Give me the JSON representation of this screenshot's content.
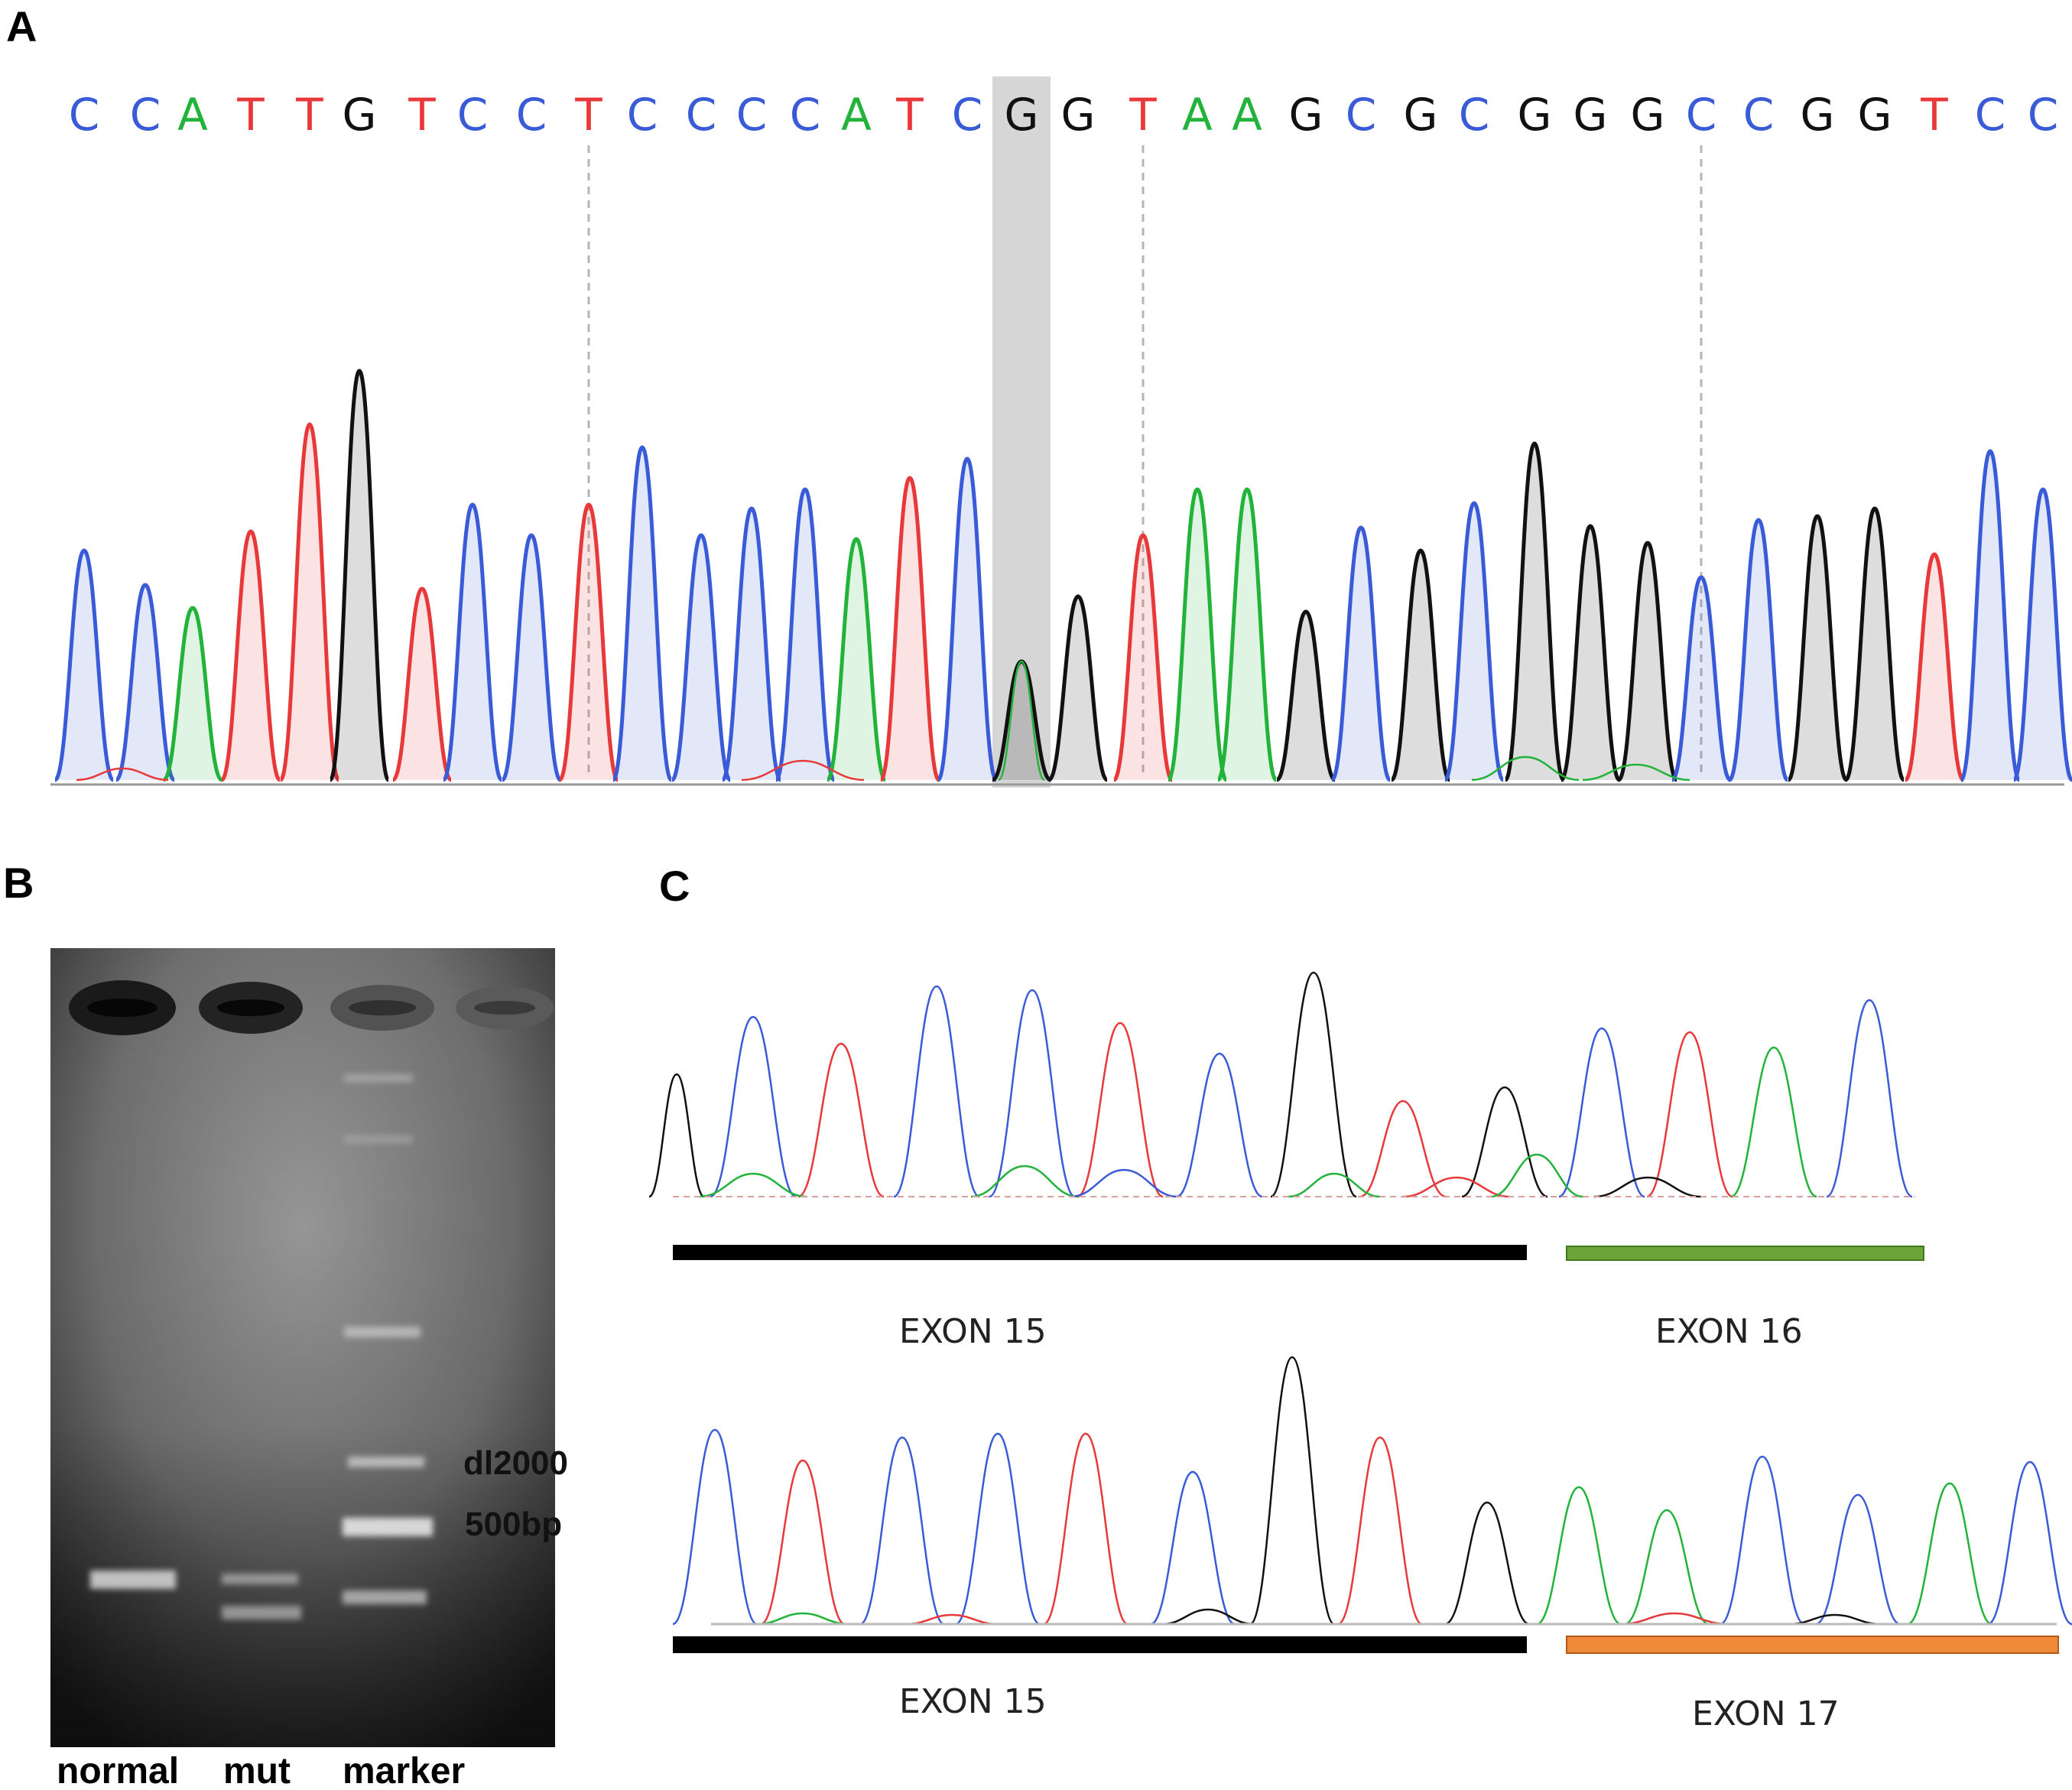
{
  "panels": {
    "a": "A",
    "b": "B",
    "c": "C"
  },
  "colors": {
    "A": "#22b33a",
    "C": "#3a5bd8",
    "G": "#111111",
    "T": "#e8393a",
    "green_bar": "#6ba539",
    "orange_bar": "#ef8a3b"
  },
  "panel_a": {
    "bases": [
      "C",
      "C",
      "A",
      "T",
      "T",
      "G",
      "T",
      "C",
      "C",
      "T",
      "C",
      "C",
      "C",
      "C",
      "A",
      "T",
      "C",
      "G",
      "G",
      "T",
      "A",
      "A",
      "G",
      "C",
      "G",
      "C",
      "G",
      "G",
      "G",
      "C",
      "C",
      "G",
      "G",
      "T",
      "C",
      "C"
    ],
    "highlighted_base_index": 17
  },
  "panel_b": {
    "marker_labels": [
      "dl2000",
      "500bp"
    ],
    "lanes": [
      "normal",
      "mut",
      "marker"
    ]
  },
  "panel_c": {
    "top": {
      "left_exon": "EXON 15",
      "right_exon": "EXON 16"
    },
    "bottom": {
      "left_exon": "EXON 15",
      "right_exon": "EXON 17"
    }
  }
}
